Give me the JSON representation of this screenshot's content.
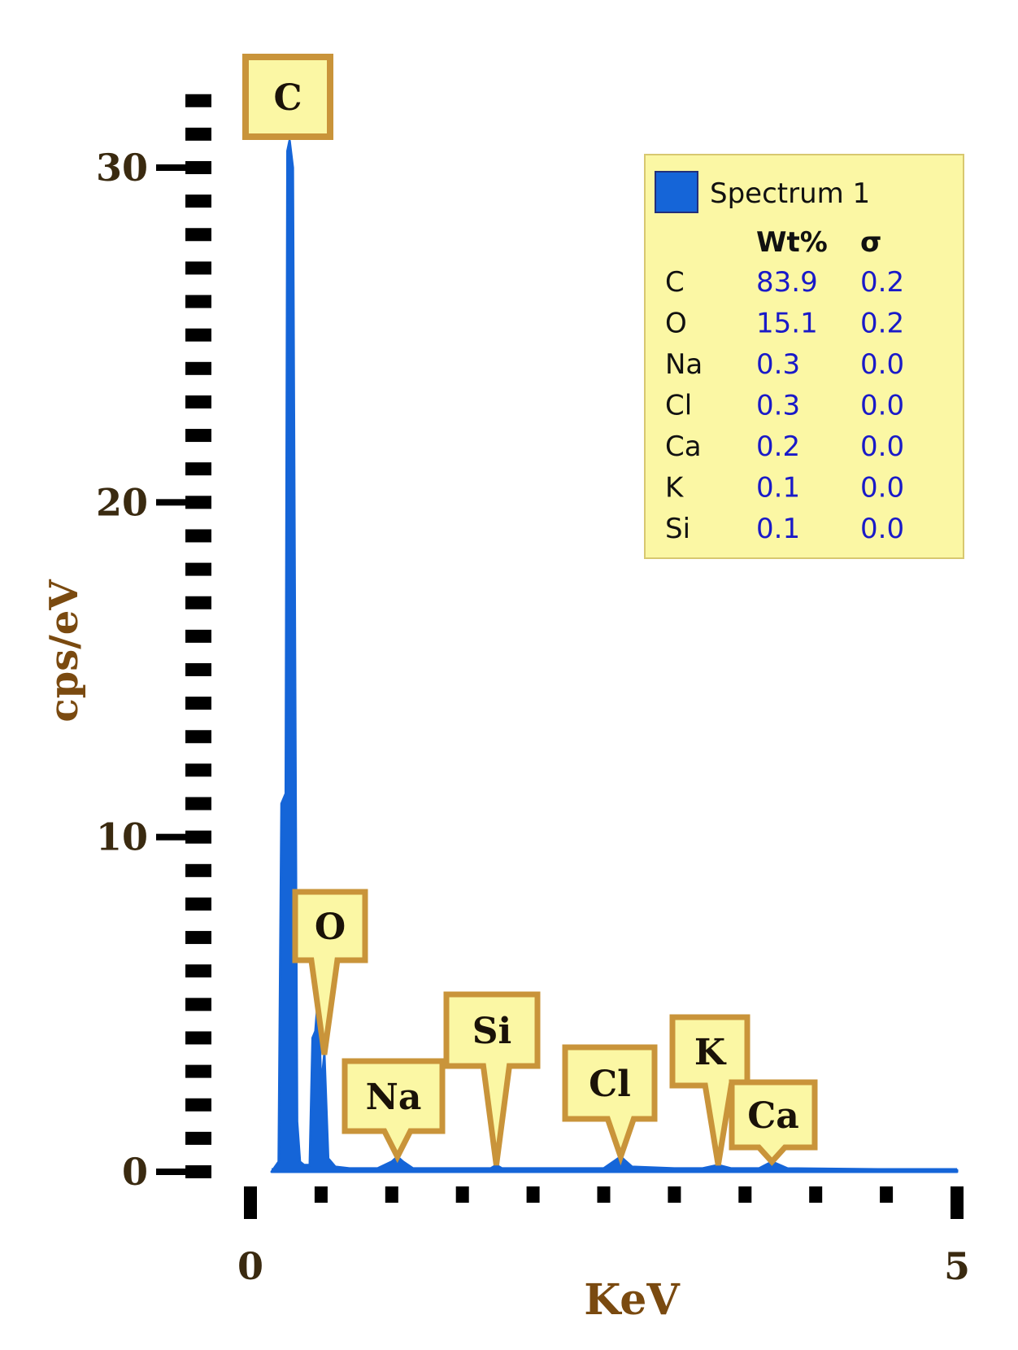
{
  "chart_data": {
    "type": "area",
    "xlabel": "KeV",
    "ylabel": "cps/eV",
    "xlim": [
      0,
      5
    ],
    "ylim": [
      0,
      30
    ],
    "x_tick_labels": [
      "0",
      "5"
    ],
    "y_tick_labels": [
      "0",
      "10",
      "20",
      "30"
    ],
    "series": [
      {
        "name": "Spectrum 1",
        "color": "#1565d8",
        "x": [
          0.15,
          0.2,
          0.22,
          0.25,
          0.262,
          0.277,
          0.3,
          0.33,
          0.35,
          0.38,
          0.42,
          0.44,
          0.46,
          0.48,
          0.5,
          0.523,
          0.55,
          0.6,
          0.7,
          0.9,
          1.0,
          1.04,
          1.08,
          1.15,
          1.5,
          1.7,
          1.74,
          1.78,
          2.3,
          2.5,
          2.62,
          2.7,
          3.0,
          3.2,
          3.31,
          3.4,
          3.6,
          3.69,
          3.8,
          5.0
        ],
        "y": [
          0.0,
          0.3,
          11.0,
          11.3,
          30.5,
          30.8,
          30.0,
          1.5,
          0.3,
          0.2,
          0.2,
          4.0,
          4.2,
          5.3,
          2.5,
          3.5,
          0.4,
          0.15,
          0.1,
          0.1,
          0.3,
          0.45,
          0.3,
          0.1,
          0.1,
          0.1,
          0.2,
          0.1,
          0.1,
          0.1,
          0.45,
          0.15,
          0.1,
          0.1,
          0.2,
          0.1,
          0.1,
          0.3,
          0.1,
          0.05
        ]
      }
    ],
    "peak_labels": [
      {
        "label": "C",
        "x": 0.277
      },
      {
        "label": "O",
        "x": 0.523
      },
      {
        "label": "Na",
        "x": 1.04
      },
      {
        "label": "Si",
        "x": 1.74
      },
      {
        "label": "Cl",
        "x": 2.62
      },
      {
        "label": "K",
        "x": 3.31
      },
      {
        "label": "Ca",
        "x": 3.69
      }
    ],
    "legend": {
      "series_name": "Spectrum 1",
      "headers": [
        "Wt%",
        "σ"
      ],
      "rows": [
        {
          "element": "C",
          "wt": "83.9",
          "sigma": "0.2"
        },
        {
          "element": "O",
          "wt": "15.1",
          "sigma": "0.2"
        },
        {
          "element": "Na",
          "wt": "0.3",
          "sigma": "0.0"
        },
        {
          "element": "Cl",
          "wt": "0.3",
          "sigma": "0.0"
        },
        {
          "element": "Ca",
          "wt": "0.2",
          "sigma": "0.0"
        },
        {
          "element": "K",
          "wt": "0.1",
          "sigma": "0.0"
        },
        {
          "element": "Si",
          "wt": "0.1",
          "sigma": "0.0"
        }
      ],
      "placement": "top-right",
      "background": "#fbf7a4"
    },
    "colors": {
      "tag_fill": "#fbf7a4",
      "tag_border": "#c9943a",
      "axis_label": "#7a4a10",
      "value_text": "#1a1ac8"
    },
    "grid": false
  }
}
